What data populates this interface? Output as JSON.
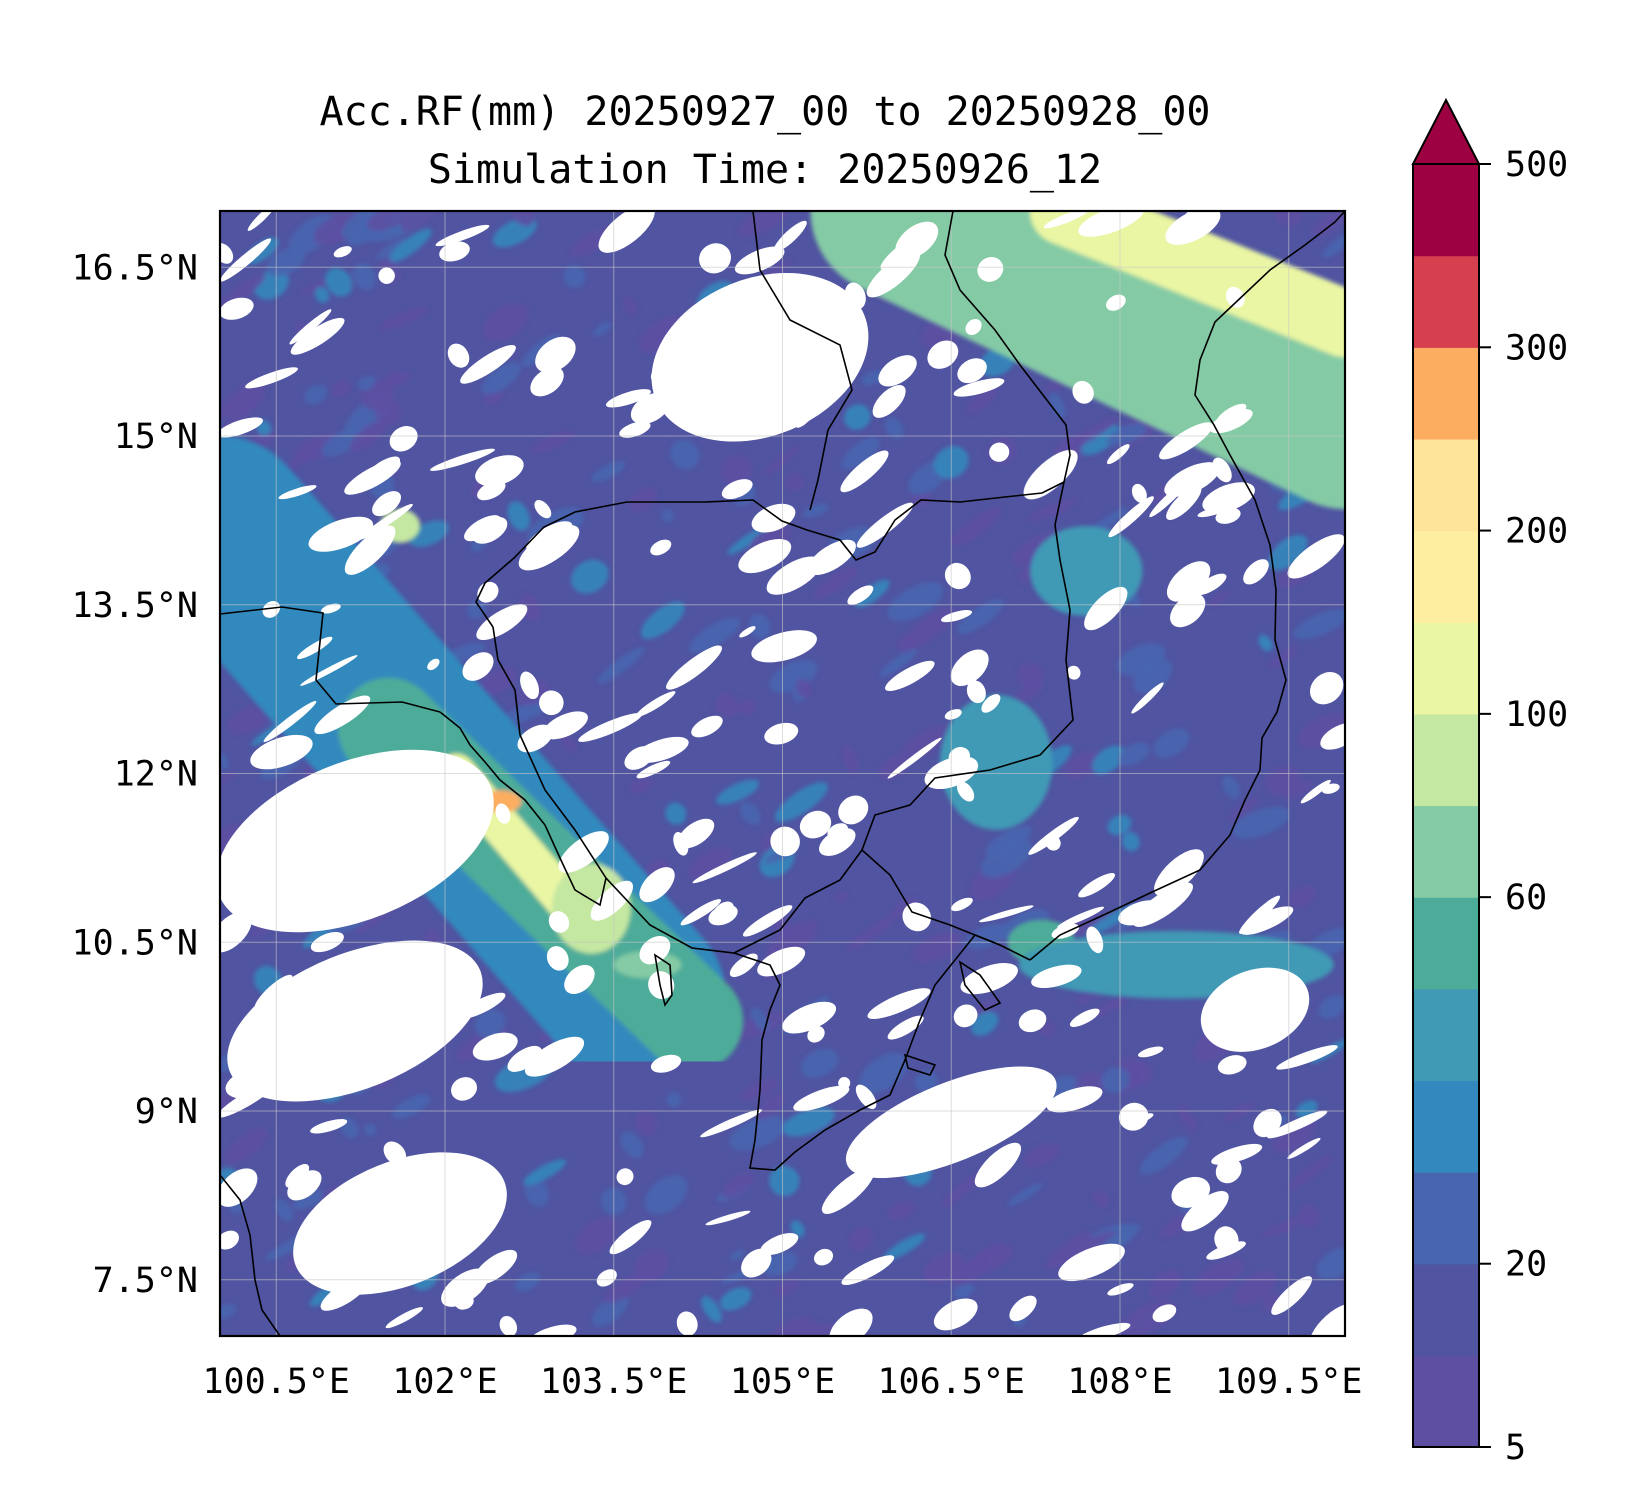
{
  "title": {
    "line1": "Acc.RF(mm) 20250927_00 to 20250928_00",
    "line2": "Simulation Time: 20250926_12"
  },
  "map": {
    "lon_range": [
      100.0,
      110.0
    ],
    "lat_range": [
      7.0,
      17.0
    ],
    "lon_ticks": [
      100.5,
      102.0,
      103.5,
      105.0,
      106.5,
      108.0,
      109.5
    ],
    "lon_tick_labels": [
      "100.5°E",
      "102°E",
      "103.5°E",
      "105°E",
      "106.5°E",
      "108°E",
      "109.5°E"
    ],
    "lat_ticks": [
      16.5,
      15.0,
      13.5,
      12.0,
      10.5,
      9.0,
      7.5
    ],
    "lat_tick_labels": [
      "16.5°N",
      "15°N",
      "13.5°N",
      "12°N",
      "10.5°N",
      "9°N",
      "7.5°N"
    ],
    "grid": true,
    "coastline_color": "#000000"
  },
  "colorbar": {
    "levels": [
      5,
      10,
      20,
      30,
      40,
      50,
      60,
      80,
      100,
      150,
      200,
      250,
      300,
      400,
      500
    ],
    "colors": [
      "#5e4fa2",
      "#5054a1",
      "#4866b0",
      "#3389bd",
      "#409ab5",
      "#4dac99",
      "#84cba5",
      "#c4e7a1",
      "#eaf6a3",
      "#fdeea0",
      "#fee49a",
      "#fdad60",
      "#d6404e",
      "#9e0142"
    ],
    "extend_color": "#9e0142",
    "tick_values": [
      5,
      20,
      60,
      100,
      200,
      300,
      500
    ],
    "tick_labels": [
      "5",
      "20",
      "60",
      "100",
      "200",
      "300",
      "500"
    ]
  },
  "rain_features": [
    {
      "type": "band",
      "lon1": 100.0,
      "lat1": 14.2,
      "lon2": 103.7,
      "lat2": 10.0,
      "width": 1.6,
      "level": 3
    },
    {
      "type": "band",
      "lon1": 101.5,
      "lat1": 12.4,
      "lon2": 104.2,
      "lat2": 9.8,
      "width": 0.9,
      "level": 5
    },
    {
      "type": "band",
      "lon1": 102.1,
      "lat1": 12.0,
      "lon2": 103.3,
      "lat2": 10.6,
      "width": 0.35,
      "level": 8
    },
    {
      "type": "blob",
      "lon": 102.5,
      "lat": 11.75,
      "rx": 0.18,
      "ry": 0.1,
      "level": 11
    },
    {
      "type": "blob",
      "lon": 103.3,
      "lat": 10.8,
      "rx": 0.35,
      "ry": 0.4,
      "level": 7
    },
    {
      "type": "band",
      "lon1": 106.0,
      "lat1": 17.0,
      "lon2": 110.0,
      "lat2": 15.1,
      "width": 1.5,
      "level": 6
    },
    {
      "type": "band",
      "lon1": 107.5,
      "lat1": 17.0,
      "lon2": 110.0,
      "lat2": 16.0,
      "width": 0.6,
      "level": 8
    },
    {
      "type": "blob",
      "lon": 101.6,
      "lat": 14.2,
      "rx": 0.18,
      "ry": 0.15,
      "level": 7
    },
    {
      "type": "blob",
      "lon": 103.8,
      "lat": 10.3,
      "rx": 0.3,
      "ry": 0.12,
      "level": 6
    },
    {
      "type": "blob",
      "lon": 107.3,
      "lat": 10.5,
      "rx": 0.3,
      "ry": 0.2,
      "level": 5
    },
    {
      "type": "blob",
      "lon": 108.5,
      "lat": 10.3,
      "rx": 1.4,
      "ry": 0.3,
      "level": 4
    },
    {
      "type": "blob",
      "lon": 107.7,
      "lat": 13.8,
      "rx": 0.5,
      "ry": 0.4,
      "level": 4
    },
    {
      "type": "blob",
      "lon": 106.9,
      "lat": 12.1,
      "rx": 0.5,
      "ry": 0.6,
      "level": 4
    }
  ],
  "dry_regions": [
    {
      "lon": 101.2,
      "lat": 11.4,
      "rx": 1.3,
      "ry": 0.7
    },
    {
      "lon": 101.2,
      "lat": 9.8,
      "rx": 1.2,
      "ry": 0.6
    },
    {
      "lon": 101.6,
      "lat": 8.0,
      "rx": 1.0,
      "ry": 0.55
    },
    {
      "lon": 104.8,
      "lat": 15.7,
      "rx": 1.0,
      "ry": 0.7
    },
    {
      "lon": 106.5,
      "lat": 8.9,
      "rx": 1.0,
      "ry": 0.35
    },
    {
      "lon": 109.2,
      "lat": 9.9,
      "rx": 0.5,
      "ry": 0.35
    }
  ]
}
